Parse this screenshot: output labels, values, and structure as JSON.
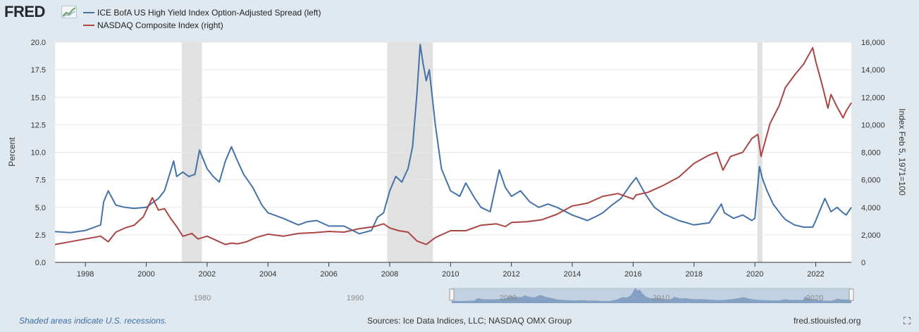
{
  "brand": {
    "name": "FRED"
  },
  "legend": [
    {
      "label": "ICE BofA US High Yield Index Option-Adjusted Spread (left)",
      "color": "#4572a7"
    },
    {
      "label": "NASDAQ Composite Index (right)",
      "color": "#aa4643"
    }
  ],
  "footer": {
    "note": "Shaded areas indicate U.S. recessions.",
    "sources": "Sources: Ice Data Indices, LLC; NASDAQ OMX Group",
    "site": "fred.stlouisfed.org"
  },
  "navigator": {
    "labels": [
      "1980",
      "1990",
      "2000",
      "2010",
      "2020"
    ]
  },
  "chart_data": {
    "type": "line",
    "title": "",
    "xlabel": "",
    "ylabel_left": "Percent",
    "ylabel_right": "Index Feb 5, 1971=100",
    "xlim": [
      1997.0,
      2023.17
    ],
    "ylim_left": [
      0,
      20
    ],
    "ylim_right": [
      0,
      16000
    ],
    "x_ticks": [
      "1998",
      "2000",
      "2002",
      "2004",
      "2006",
      "2008",
      "2010",
      "2012",
      "2014",
      "2016",
      "2018",
      "2020",
      "2022"
    ],
    "y_ticks_left": [
      "0.0",
      "2.5",
      "5.0",
      "7.5",
      "10.0",
      "12.5",
      "15.0",
      "17.5",
      "20.0"
    ],
    "y_ticks_right": [
      "0",
      "2,000",
      "4,000",
      "6,000",
      "8,000",
      "10,000",
      "12,000",
      "14,000",
      "16,000"
    ],
    "grid": true,
    "recessions": [
      [
        2001.17,
        2001.83
      ],
      [
        2007.92,
        2009.42
      ],
      [
        2020.08,
        2020.25
      ]
    ],
    "series": [
      {
        "name": "ICE BofA US High Yield Index Option-Adjusted Spread (left)",
        "axis": "left",
        "color": "#4572a7",
        "x": [
          1997.0,
          1997.5,
          1998.0,
          1998.5,
          1998.6,
          1998.75,
          1999.0,
          1999.3,
          1999.6,
          2000.0,
          2000.4,
          2000.6,
          2000.9,
          2001.0,
          2001.2,
          2001.4,
          2001.6,
          2001.75,
          2002.0,
          2002.2,
          2002.4,
          2002.6,
          2002.8,
          2003.0,
          2003.2,
          2003.5,
          2003.8,
          2004.0,
          2004.5,
          2005.0,
          2005.3,
          2005.6,
          2006.0,
          2006.5,
          2007.0,
          2007.4,
          2007.6,
          2007.8,
          2008.0,
          2008.2,
          2008.4,
          2008.6,
          2008.75,
          2008.9,
          2009.0,
          2009.1,
          2009.2,
          2009.3,
          2009.5,
          2009.7,
          2010.0,
          2010.3,
          2010.5,
          2010.8,
          2011.0,
          2011.3,
          2011.6,
          2011.8,
          2012.0,
          2012.3,
          2012.6,
          2012.9,
          2013.2,
          2013.5,
          2014.0,
          2014.5,
          2014.8,
          2015.0,
          2015.3,
          2015.6,
          2015.9,
          2016.1,
          2016.4,
          2016.7,
          2017.0,
          2017.5,
          2018.0,
          2018.5,
          2018.9,
          2019.0,
          2019.3,
          2019.6,
          2019.9,
          2020.0,
          2020.15,
          2020.25,
          2020.4,
          2020.6,
          2020.9,
          2021.0,
          2021.3,
          2021.6,
          2021.9,
          2022.0,
          2022.3,
          2022.5,
          2022.7,
          2022.9,
          2023.0,
          2023.17
        ],
        "y": [
          2.8,
          2.7,
          2.9,
          3.4,
          5.5,
          6.5,
          5.2,
          5.0,
          4.9,
          5.0,
          5.8,
          6.5,
          9.2,
          7.8,
          8.2,
          7.8,
          8.0,
          10.2,
          8.5,
          7.8,
          7.3,
          9.2,
          10.5,
          9.2,
          8.0,
          6.8,
          5.2,
          4.5,
          4.0,
          3.4,
          3.7,
          3.8,
          3.3,
          3.3,
          2.6,
          2.9,
          4.1,
          4.5,
          6.5,
          7.8,
          7.3,
          8.5,
          10.5,
          15.5,
          19.8,
          18.0,
          16.5,
          17.5,
          12.5,
          8.5,
          6.5,
          6.0,
          7.2,
          5.8,
          5.0,
          4.6,
          8.4,
          6.8,
          6.0,
          6.5,
          5.5,
          5.0,
          5.3,
          5.0,
          4.3,
          3.8,
          4.2,
          4.5,
          5.2,
          5.8,
          7.0,
          7.7,
          6.2,
          5.0,
          4.4,
          3.8,
          3.4,
          3.6,
          5.3,
          4.5,
          4.0,
          4.3,
          3.8,
          4.0,
          8.7,
          7.6,
          6.5,
          5.3,
          4.2,
          3.9,
          3.4,
          3.2,
          3.2,
          3.8,
          5.8,
          4.6,
          5.0,
          4.5,
          4.3,
          5.0
        ]
      },
      {
        "name": "NASDAQ Composite Index (right)",
        "axis": "right",
        "color": "#aa4643",
        "x": [
          1997.0,
          1997.5,
          1998.0,
          1998.5,
          1998.75,
          1999.0,
          1999.3,
          1999.6,
          1999.9,
          2000.2,
          2000.4,
          2000.6,
          2000.8,
          2001.0,
          2001.2,
          2001.5,
          2001.7,
          2002.0,
          2002.3,
          2002.6,
          2002.8,
          2003.0,
          2003.3,
          2003.6,
          2004.0,
          2004.5,
          2005.0,
          2005.5,
          2006.0,
          2006.5,
          2007.0,
          2007.5,
          2007.8,
          2008.0,
          2008.3,
          2008.6,
          2008.9,
          2009.2,
          2009.5,
          2009.8,
          2010.0,
          2010.5,
          2011.0,
          2011.5,
          2011.8,
          2012.0,
          2012.5,
          2013.0,
          2013.5,
          2014.0,
          2014.5,
          2015.0,
          2015.5,
          2016.0,
          2016.1,
          2016.5,
          2017.0,
          2017.5,
          2018.0,
          2018.5,
          2018.75,
          2018.95,
          2019.2,
          2019.6,
          2019.9,
          2020.1,
          2020.2,
          2020.5,
          2020.8,
          2021.0,
          2021.3,
          2021.6,
          2021.9,
          2022.0,
          2022.2,
          2022.4,
          2022.5,
          2022.7,
          2022.9,
          2023.0,
          2023.17
        ],
        "y": [
          1300,
          1500,
          1700,
          1900,
          1500,
          2200,
          2500,
          2700,
          3300,
          4700,
          3800,
          3900,
          3200,
          2600,
          1900,
          2100,
          1700,
          1900,
          1600,
          1300,
          1400,
          1350,
          1500,
          1800,
          2050,
          1900,
          2100,
          2150,
          2250,
          2200,
          2450,
          2600,
          2800,
          2500,
          2300,
          2200,
          1550,
          1300,
          1800,
          2100,
          2300,
          2300,
          2700,
          2800,
          2600,
          2900,
          2950,
          3100,
          3500,
          4100,
          4300,
          4800,
          5000,
          4600,
          4900,
          5100,
          5600,
          6200,
          7200,
          7800,
          8000,
          6700,
          7700,
          8000,
          9000,
          9300,
          7700,
          10100,
          11400,
          12700,
          13600,
          14400,
          15600,
          14600,
          13000,
          11200,
          12200,
          11300,
          10500,
          11000,
          11600
        ]
      }
    ]
  }
}
